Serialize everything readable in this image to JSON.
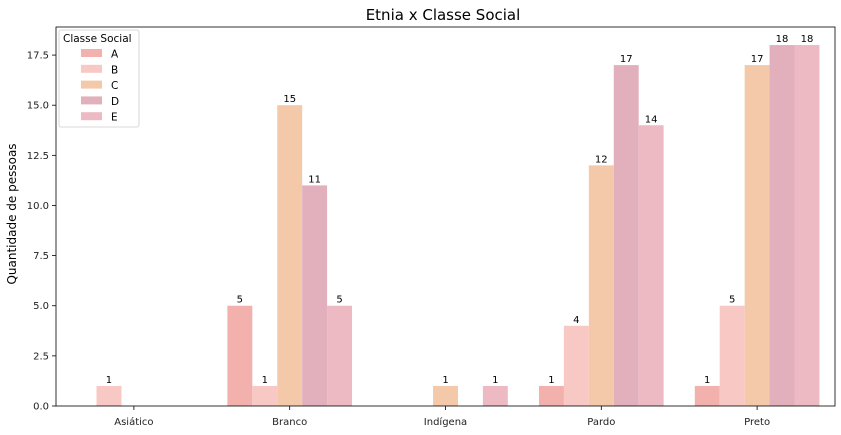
{
  "chart_data": {
    "type": "bar",
    "title": "Etnia x Classe Social",
    "xlabel": "",
    "ylabel": "Quantidade de pessoas",
    "categories": [
      "Asiático",
      "Branco",
      "Indígena",
      "Pardo",
      "Preto"
    ],
    "series": [
      {
        "name": "A",
        "color": "#f2b1ad",
        "values": [
          null,
          5,
          null,
          1,
          1
        ]
      },
      {
        "name": "B",
        "color": "#f7c8c4",
        "values": [
          1,
          1,
          null,
          4,
          5
        ]
      },
      {
        "name": "C",
        "color": "#f4c9a9",
        "values": [
          null,
          15,
          1,
          12,
          17
        ]
      },
      {
        "name": "D",
        "color": "#e2b0bc",
        "values": [
          null,
          11,
          null,
          17,
          18
        ]
      },
      {
        "name": "E",
        "color": "#edb9c3",
        "values": [
          null,
          5,
          1,
          14,
          18
        ]
      }
    ],
    "ylim": [
      0,
      18.9
    ],
    "yticks": [
      "0.0",
      "2.5",
      "5.0",
      "7.5",
      "10.0",
      "12.5",
      "15.0",
      "17.5"
    ],
    "grid": false,
    "legend": {
      "title": "Classe Social",
      "placement": "top-left"
    }
  }
}
